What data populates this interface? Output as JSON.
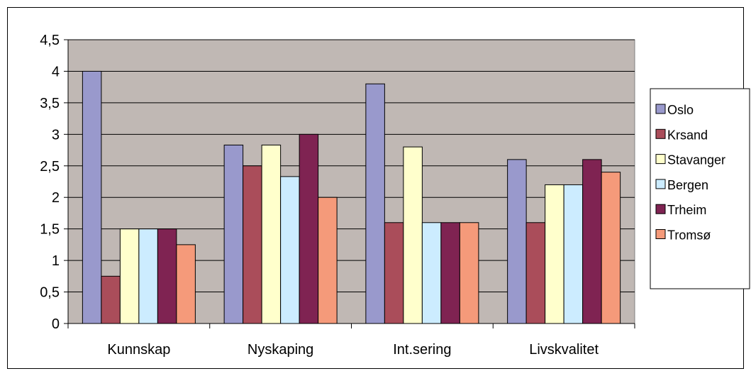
{
  "chart_data": {
    "type": "bar",
    "categories": [
      "Kunnskap",
      "Nyskaping",
      "Int.sering",
      "Livskvalitet"
    ],
    "series": [
      {
        "name": "Oslo",
        "values": [
          4.0,
          2.83,
          3.8,
          2.6
        ],
        "color": "#9999cc"
      },
      {
        "name": "Krsand",
        "values": [
          0.75,
          2.5,
          1.6,
          1.6
        ],
        "color": "#aa4d5a"
      },
      {
        "name": "Stavanger",
        "values": [
          1.5,
          2.83,
          2.8,
          2.2
        ],
        "color": "#ffffcc"
      },
      {
        "name": "Bergen",
        "values": [
          1.5,
          2.33,
          1.6,
          2.2
        ],
        "color": "#ccecff"
      },
      {
        "name": "Trheim",
        "values": [
          1.5,
          3.0,
          1.6,
          2.6
        ],
        "color": "#7f2352"
      },
      {
        "name": "Tromsø",
        "values": [
          1.25,
          2.0,
          1.6,
          2.4
        ],
        "color": "#f59a7a"
      }
    ],
    "yticks": [
      "0",
      "0,5",
      "1",
      "1,5",
      "2",
      "2,5",
      "3",
      "3,5",
      "4",
      "4,5"
    ],
    "ylim": [
      0,
      4.5
    ],
    "grid": true,
    "legend_position": "right",
    "plot_background": "#c0b8b4"
  }
}
